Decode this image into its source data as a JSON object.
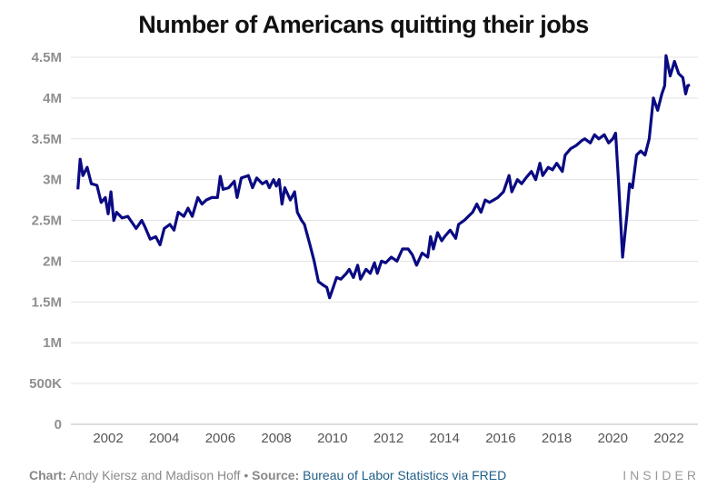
{
  "chart_data": {
    "type": "line",
    "title": "Number of Americans quitting their jobs",
    "xlabel": "",
    "ylabel": "",
    "xlim": [
      2000.9,
      2022.75
    ],
    "ylim": [
      0,
      4500000
    ],
    "grid": true,
    "x_ticks": [
      "2002",
      "2004",
      "2006",
      "2008",
      "2010",
      "2012",
      "2014",
      "2016",
      "2018",
      "2020",
      "2022"
    ],
    "y_ticks": [
      {
        "value": 0,
        "label": "0"
      },
      {
        "value": 500000,
        "label": "500K"
      },
      {
        "value": 1000000,
        "label": "1M"
      },
      {
        "value": 1500000,
        "label": "1.5M"
      },
      {
        "value": 2000000,
        "label": "2M"
      },
      {
        "value": 2500000,
        "label": "2.5M"
      },
      {
        "value": 3000000,
        "label": "3M"
      },
      {
        "value": 3500000,
        "label": "3.5M"
      },
      {
        "value": 4000000,
        "label": "4M"
      },
      {
        "value": 4500000,
        "label": "4.5M"
      }
    ],
    "series_color": "#0a0a82",
    "x": [
      2000.92,
      2001.0,
      2001.1,
      2001.25,
      2001.4,
      2001.6,
      2001.75,
      2001.9,
      2002.0,
      2002.1,
      2002.2,
      2002.3,
      2002.5,
      2002.7,
      2002.9,
      2003.0,
      2003.2,
      2003.3,
      2003.5,
      2003.7,
      2003.85,
      2004.0,
      2004.2,
      2004.35,
      2004.5,
      2004.7,
      2004.85,
      2005.0,
      2005.2,
      2005.35,
      2005.5,
      2005.7,
      2005.9,
      2006.0,
      2006.1,
      2006.3,
      2006.5,
      2006.6,
      2006.75,
      2007.0,
      2007.15,
      2007.3,
      2007.5,
      2007.65,
      2007.75,
      2007.9,
      2008.0,
      2008.1,
      2008.2,
      2008.3,
      2008.5,
      2008.65,
      2008.75,
      2008.9,
      2009.0,
      2009.2,
      2009.35,
      2009.5,
      2009.7,
      2009.8,
      2009.9,
      2010.0,
      2010.15,
      2010.3,
      2010.5,
      2010.6,
      2010.75,
      2010.9,
      2011.0,
      2011.2,
      2011.35,
      2011.5,
      2011.6,
      2011.75,
      2011.9,
      2012.1,
      2012.3,
      2012.5,
      2012.7,
      2012.85,
      2013.0,
      2013.2,
      2013.4,
      2013.5,
      2013.6,
      2013.75,
      2013.9,
      2014.0,
      2014.2,
      2014.4,
      2014.5,
      2014.7,
      2014.85,
      2015.0,
      2015.15,
      2015.3,
      2015.45,
      2015.6,
      2015.75,
      2015.9,
      2016.1,
      2016.3,
      2016.4,
      2016.6,
      2016.75,
      2016.9,
      2017.1,
      2017.25,
      2017.4,
      2017.5,
      2017.7,
      2017.85,
      2018.0,
      2018.2,
      2018.3,
      2018.5,
      2018.7,
      2018.9,
      2019.0,
      2019.2,
      2019.35,
      2019.5,
      2019.7,
      2019.85,
      2020.0,
      2020.1,
      2020.2,
      2020.35,
      2020.5,
      2020.6,
      2020.7,
      2020.85,
      2021.0,
      2021.15,
      2021.3,
      2021.45,
      2021.6,
      2021.75,
      2021.85,
      2021.9,
      2022.05,
      2022.2,
      2022.35,
      2022.5,
      2022.6,
      2022.67,
      2022.75
    ],
    "values": [
      2880000,
      3250000,
      3050000,
      3150000,
      2950000,
      2930000,
      2720000,
      2780000,
      2580000,
      2850000,
      2500000,
      2600000,
      2530000,
      2550000,
      2450000,
      2400000,
      2500000,
      2430000,
      2270000,
      2300000,
      2200000,
      2400000,
      2450000,
      2380000,
      2600000,
      2550000,
      2650000,
      2550000,
      2780000,
      2700000,
      2750000,
      2780000,
      2780000,
      3040000,
      2880000,
      2900000,
      2980000,
      2780000,
      3020000,
      3050000,
      2900000,
      3020000,
      2950000,
      2980000,
      2900000,
      3000000,
      2920000,
      3000000,
      2700000,
      2900000,
      2750000,
      2850000,
      2600000,
      2500000,
      2450000,
      2200000,
      2000000,
      1750000,
      1700000,
      1680000,
      1550000,
      1650000,
      1800000,
      1780000,
      1850000,
      1900000,
      1800000,
      1950000,
      1780000,
      1900000,
      1850000,
      1980000,
      1850000,
      2000000,
      1980000,
      2050000,
      2000000,
      2150000,
      2150000,
      2080000,
      1950000,
      2100000,
      2050000,
      2300000,
      2150000,
      2350000,
      2250000,
      2300000,
      2380000,
      2280000,
      2450000,
      2500000,
      2550000,
      2600000,
      2700000,
      2600000,
      2750000,
      2720000,
      2750000,
      2780000,
      2850000,
      3050000,
      2850000,
      3000000,
      2950000,
      3020000,
      3100000,
      3000000,
      3200000,
      3050000,
      3150000,
      3120000,
      3200000,
      3100000,
      3300000,
      3380000,
      3420000,
      3480000,
      3500000,
      3450000,
      3550000,
      3500000,
      3550000,
      3450000,
      3500000,
      3570000,
      3000000,
      2050000,
      2550000,
      2950000,
      2900000,
      3300000,
      3350000,
      3300000,
      3500000,
      4000000,
      3850000,
      4050000,
      4150000,
      4520000,
      4270000,
      4450000,
      4300000,
      4250000,
      4050000,
      4150000,
      4160000
    ]
  },
  "footer": {
    "chart_label": "Chart:",
    "chart_authors": "Andy Kiersz and Madison Hoff",
    "bullet": "•",
    "source_label": "Source:",
    "source_text": "Bureau of Labor Statistics via FRED",
    "brand": "INSIDER"
  }
}
